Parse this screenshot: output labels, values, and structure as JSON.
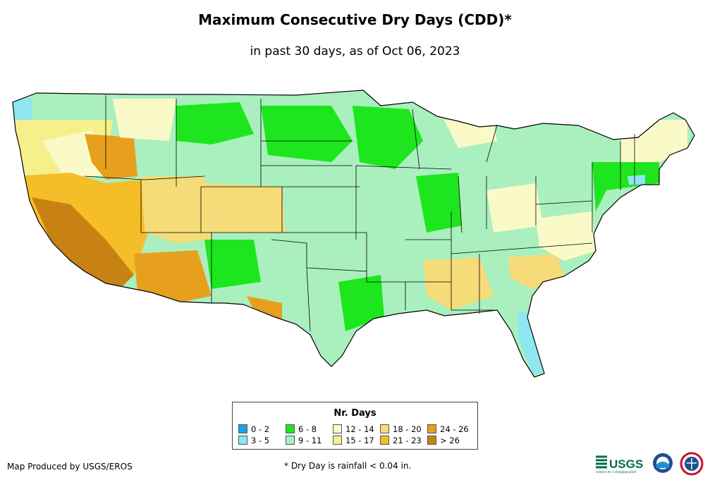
{
  "title": "Maximum Consecutive Dry Days (CDD)*",
  "subtitle": "in past 30 days, as of Oct 06, 2023",
  "legend": {
    "title": "Nr. Days",
    "items": [
      {
        "label": "0 - 2",
        "color": "#1ea0e6"
      },
      {
        "label": "3 - 5",
        "color": "#8ee6f0"
      },
      {
        "label": "6 - 8",
        "color": "#1ee61e"
      },
      {
        "label": "9 - 11",
        "color": "#aaf0be"
      },
      {
        "label": "12 - 14",
        "color": "#fafac8"
      },
      {
        "label": "15 - 17",
        "color": "#f5f08c"
      },
      {
        "label": "18 - 20",
        "color": "#f5dc78"
      },
      {
        "label": "21 - 23",
        "color": "#f5be28"
      },
      {
        "label": "24 - 26",
        "color": "#e6a01e"
      },
      {
        "label": "> 26",
        "color": "#c88214"
      }
    ]
  },
  "credit": "Map Produced by USGS/EROS",
  "footnote": "* Dry Day is rainfall < 0.04 in.",
  "logos": {
    "usgs": "USGS",
    "usgs_tagline": "science for a changing world"
  }
}
